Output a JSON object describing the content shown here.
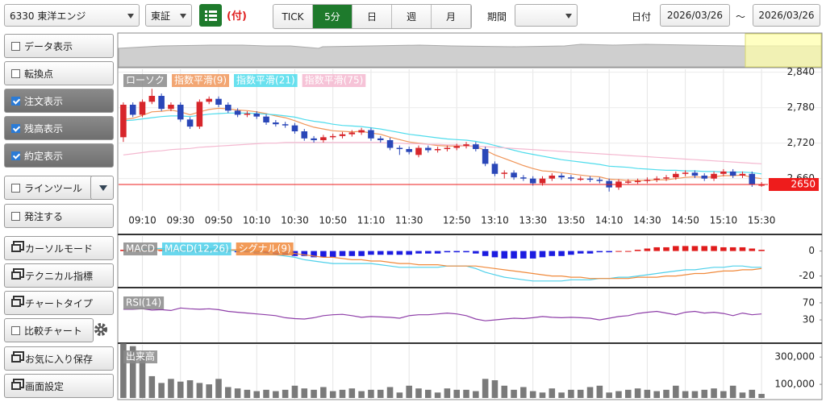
{
  "toolbar": {
    "symbol": "6330 東洋エンジ",
    "market": "東証",
    "flag": "(付)",
    "tabs": [
      "TICK",
      "5分",
      "日",
      "週",
      "月"
    ],
    "active_tab": 1,
    "period_label": "期間",
    "date_label": "日付",
    "date_from": "2026/03/26",
    "tilde": "～",
    "date_to": "2026/03/26"
  },
  "sidebar": {
    "items": [
      {
        "label": "データ表示",
        "checked": false
      },
      {
        "label": "転換点",
        "checked": false
      },
      {
        "label": "注文表示",
        "checked": true
      },
      {
        "label": "残高表示",
        "checked": true
      },
      {
        "label": "約定表示",
        "checked": true
      },
      {
        "label": "ラインツール",
        "checked": false
      },
      {
        "label": "発注する",
        "checked": false
      },
      {
        "label": "カーソルモード"
      },
      {
        "label": "テクニカル指標"
      },
      {
        "label": "チャートタイプ"
      },
      {
        "label": "比較チャート",
        "checked": false
      },
      {
        "label": "お気に入り保存"
      },
      {
        "label": "画面設定"
      }
    ]
  },
  "chart_data": [
    {
      "type": "candlestick",
      "name": "ローソク",
      "up_color": "#d7262b",
      "down_color": "#2a47b8",
      "grid": true,
      "categories": [
        null,
        null,
        "09:10",
        null,
        null,
        null,
        "09:30",
        null,
        null,
        null,
        "09:50",
        null,
        null,
        null,
        "10:10",
        null,
        null,
        null,
        "10:30",
        null,
        null,
        null,
        "10:50",
        null,
        null,
        null,
        "11:10",
        null,
        null,
        null,
        "11:30",
        null,
        null,
        null,
        null,
        "12:50",
        null,
        null,
        null,
        "13:10",
        null,
        null,
        null,
        "13:30",
        null,
        null,
        null,
        "13:50",
        null,
        null,
        null,
        "14:10",
        null,
        null,
        null,
        "14:30",
        null,
        null,
        null,
        "14:50",
        null,
        null,
        null,
        "15:10",
        null,
        null,
        null,
        "15:30"
      ],
      "open": [
        2730,
        2785,
        2768,
        2790,
        2800,
        2778,
        2785,
        2760,
        2748,
        2790,
        2795,
        2785,
        2775,
        2768,
        2770,
        2765,
        2755,
        2752,
        2750,
        2740,
        2728,
        2725,
        2730,
        2732,
        2735,
        2738,
        2742,
        2728,
        2725,
        2712,
        2710,
        2700,
        2712,
        2708,
        2710,
        2712,
        2715,
        2718,
        2710,
        2685,
        2668,
        2670,
        2662,
        2660,
        2652,
        2660,
        2665,
        2662,
        2660,
        2660,
        2658,
        2656,
        2645,
        2655,
        2655,
        2656,
        2658,
        2660,
        2662,
        2668,
        2670,
        2665,
        2660,
        2668,
        2672,
        2665,
        2668,
        2650
      ],
      "high": [
        2789,
        2789,
        2794,
        2812,
        2804,
        2789,
        2789,
        2764,
        2794,
        2799,
        2799,
        2789,
        2779,
        2774,
        2774,
        2769,
        2759,
        2756,
        2754,
        2744,
        2732,
        2734,
        2736,
        2739,
        2742,
        2746,
        2746,
        2732,
        2729,
        2716,
        2714,
        2716,
        2716,
        2714,
        2716,
        2719,
        2722,
        2722,
        2714,
        2689,
        2674,
        2674,
        2666,
        2664,
        2664,
        2669,
        2669,
        2666,
        2664,
        2664,
        2662,
        2660,
        2659,
        2659,
        2660,
        2662,
        2664,
        2666,
        2672,
        2674,
        2674,
        2669,
        2672,
        2676,
        2676,
        2672,
        2672,
        2654
      ],
      "low": [
        2722,
        2764,
        2764,
        2786,
        2774,
        2774,
        2756,
        2744,
        2744,
        2786,
        2781,
        2771,
        2764,
        2764,
        2761,
        2751,
        2748,
        2746,
        2736,
        2724,
        2721,
        2721,
        2726,
        2728,
        2731,
        2734,
        2724,
        2721,
        2708,
        2700,
        2701,
        2696,
        2704,
        2704,
        2706,
        2708,
        2711,
        2706,
        2681,
        2664,
        2660,
        2658,
        2656,
        2648,
        2648,
        2656,
        2658,
        2656,
        2656,
        2654,
        2652,
        2638,
        2641,
        2651,
        2651,
        2652,
        2654,
        2656,
        2658,
        2664,
        2661,
        2656,
        2656,
        2664,
        2661,
        2661,
        2646,
        2646
      ],
      "close": [
        2785,
        2768,
        2790,
        2800,
        2778,
        2785,
        2760,
        2748,
        2790,
        2795,
        2785,
        2775,
        2768,
        2770,
        2765,
        2755,
        2752,
        2750,
        2740,
        2728,
        2725,
        2730,
        2732,
        2735,
        2738,
        2742,
        2728,
        2725,
        2712,
        2710,
        2705,
        2712,
        2708,
        2710,
        2712,
        2715,
        2718,
        2710,
        2685,
        2668,
        2670,
        2662,
        2660,
        2652,
        2660,
        2665,
        2662,
        2660,
        2660,
        2658,
        2656,
        2645,
        2655,
        2655,
        2656,
        2658,
        2660,
        2662,
        2668,
        2670,
        2665,
        2660,
        2668,
        2672,
        2665,
        2668,
        2650,
        2650
      ],
      "series": [
        {
          "name": "指数平滑(9)",
          "color": "#f0965a",
          "values": [
            2760,
            2762,
            2767,
            2773,
            2774,
            2776,
            2773,
            2768,
            2773,
            2777,
            2779,
            2778,
            2776,
            2775,
            2773,
            2770,
            2766,
            2763,
            2758,
            2752,
            2747,
            2744,
            2741,
            2740,
            2739,
            2740,
            2737,
            2735,
            2730,
            2726,
            2722,
            2720,
            2718,
            2716,
            2715,
            2715,
            2716,
            2714,
            2708,
            2700,
            2694,
            2688,
            2682,
            2677,
            2673,
            2672,
            2670,
            2668,
            2666,
            2664,
            2663,
            2659,
            2658,
            2657,
            2657,
            2657,
            2658,
            2658,
            2660,
            2662,
            2663,
            2662,
            2663,
            2665,
            2665,
            2666,
            2662,
            2660
          ]
        },
        {
          "name": "指数平滑(21)",
          "color": "#4fdcec",
          "values": [
            2758,
            2759,
            2761,
            2763,
            2765,
            2766,
            2766,
            2765,
            2767,
            2769,
            2770,
            2771,
            2771,
            2771,
            2770,
            2769,
            2768,
            2766,
            2764,
            2760,
            2757,
            2755,
            2752,
            2750,
            2749,
            2748,
            2746,
            2744,
            2741,
            2738,
            2735,
            2733,
            2731,
            2729,
            2727,
            2726,
            2725,
            2723,
            2720,
            2716,
            2712,
            2708,
            2704,
            2701,
            2698,
            2695,
            2692,
            2690,
            2688,
            2686,
            2684,
            2681,
            2680,
            2679,
            2677,
            2676,
            2675,
            2674,
            2674,
            2673,
            2673,
            2672,
            2672,
            2671,
            2671,
            2671,
            2670,
            2668
          ]
        },
        {
          "name": "指数平滑(75)",
          "color": "#f4b8d0",
          "values": [
            2700,
            2702,
            2704,
            2706,
            2707,
            2709,
            2710,
            2711,
            2713,
            2714,
            2715,
            2716,
            2717,
            2718,
            2719,
            2720,
            2720,
            2721,
            2721,
            2721,
            2721,
            2721,
            2721,
            2721,
            2721,
            2721,
            2721,
            2721,
            2720,
            2720,
            2719,
            2719,
            2718,
            2718,
            2717,
            2717,
            2716,
            2715,
            2714,
            2713,
            2712,
            2711,
            2710,
            2709,
            2708,
            2707,
            2706,
            2705,
            2704,
            2703,
            2702,
            2701,
            2700,
            2699,
            2698,
            2697,
            2696,
            2695,
            2694,
            2693,
            2692,
            2691,
            2690,
            2689,
            2688,
            2687,
            2686,
            2685
          ]
        }
      ],
      "ylim": [
        2605,
        2845
      ],
      "yticks": [
        {
          "value": 2840,
          "label": "2,840"
        },
        {
          "value": 2780,
          "label": "2,780"
        },
        {
          "value": 2720,
          "label": "2,720"
        },
        {
          "value": 2660,
          "label": "2,660"
        }
      ],
      "last_price": 2650,
      "last_price_color": "#ee1c1c"
    },
    {
      "type": "macd",
      "grid": false,
      "series": [
        {
          "name": "MACD",
          "type": "bar",
          "color": "#e01c1c",
          "negative_color": "#1c1ce0",
          "values": [
            1,
            1,
            1,
            1,
            1,
            1,
            0,
            0,
            0,
            1,
            1,
            0,
            -1,
            -1,
            -2,
            -2,
            -3,
            -3,
            -4,
            -4,
            -5,
            -5,
            -5,
            -4,
            -4,
            -4,
            -3,
            -3,
            -3,
            -3,
            -3,
            -2,
            -2,
            -2,
            -1,
            -1,
            -1,
            -2,
            -4,
            -5,
            -6,
            -6,
            -6,
            -6,
            -5,
            -4,
            -4,
            -3,
            -2,
            -2,
            -1,
            -1,
            0,
            0,
            1,
            2,
            3,
            3,
            4,
            4,
            4,
            4,
            4,
            3,
            3,
            3,
            2,
            1
          ]
        },
        {
          "name": "MACD(12,26)",
          "type": "line",
          "color": "#4fd0ea",
          "values": [
            0,
            0,
            1,
            2,
            2,
            2,
            1,
            0,
            1,
            2,
            2,
            1,
            0,
            0,
            -1,
            -2,
            -3,
            -4,
            -5,
            -7,
            -8,
            -9,
            -10,
            -10,
            -10,
            -10,
            -10,
            -11,
            -12,
            -13,
            -13,
            -13,
            -13,
            -13,
            -12,
            -12,
            -12,
            -14,
            -17,
            -19,
            -21,
            -22,
            -23,
            -24,
            -24,
            -24,
            -24,
            -23,
            -23,
            -23,
            -22,
            -22,
            -21,
            -21,
            -20,
            -19,
            -18,
            -17,
            -16,
            -15,
            -15,
            -14,
            -13,
            -13,
            -12,
            -12,
            -13,
            -13
          ]
        },
        {
          "name": "シグナル(9)",
          "type": "line",
          "color": "#f08a3c",
          "values": [
            0,
            0,
            0,
            1,
            1,
            1,
            1,
            1,
            1,
            1,
            1,
            1,
            1,
            1,
            0,
            0,
            -1,
            -1,
            -2,
            -3,
            -4,
            -5,
            -5,
            -6,
            -7,
            -7,
            -8,
            -8,
            -9,
            -10,
            -10,
            -11,
            -11,
            -11,
            -12,
            -12,
            -12,
            -12,
            -13,
            -14,
            -15,
            -16,
            -17,
            -18,
            -19,
            -20,
            -20,
            -21,
            -21,
            -22,
            -22,
            -22,
            -22,
            -22,
            -21,
            -21,
            -21,
            -20,
            -20,
            -19,
            -18,
            -18,
            -17,
            -16,
            -16,
            -15,
            -15,
            -14
          ]
        }
      ],
      "ylim": [
        -28,
        12
      ],
      "yticks": [
        0,
        -20
      ]
    },
    {
      "type": "line",
      "grid": false,
      "series": [
        {
          "name": "RSI(14)",
          "color": "#8e3ea8",
          "values": [
            55,
            55,
            56,
            53,
            54,
            52,
            58,
            56,
            55,
            56,
            54,
            50,
            48,
            46,
            44,
            42,
            40,
            35,
            33,
            32,
            35,
            40,
            42,
            43,
            40,
            36,
            38,
            37,
            36,
            34,
            40,
            42,
            42,
            44,
            46,
            44,
            40,
            32,
            28,
            30,
            32,
            34,
            33,
            35,
            38,
            36,
            35,
            36,
            35,
            34,
            30,
            34,
            38,
            40,
            45,
            48,
            50,
            46,
            42,
            48,
            50,
            46,
            48,
            45,
            40,
            46,
            42,
            44
          ]
        }
      ],
      "ylim": [
        0,
        100
      ],
      "yticks": [
        70,
        30
      ]
    },
    {
      "type": "bar",
      "grid": false,
      "series": [
        {
          "name": "出来高",
          "color": "#7a7a7a",
          "values": [
            400000,
            380000,
            310000,
            160000,
            110000,
            140000,
            120000,
            130000,
            110000,
            100000,
            140000,
            80000,
            70000,
            60000,
            50000,
            60000,
            50000,
            60000,
            90000,
            70000,
            60000,
            80000,
            50000,
            60000,
            70000,
            50000,
            60000,
            60000,
            80000,
            40000,
            90000,
            70000,
            60000,
            40000,
            70000,
            60000,
            60000,
            50000,
            140000,
            130000,
            90000,
            60000,
            80000,
            50000,
            40000,
            70000,
            40000,
            60000,
            60000,
            80000,
            90000,
            40000,
            50000,
            60000,
            70000,
            60000,
            50000,
            60000,
            90000,
            50000,
            50000,
            60000,
            70000,
            50000,
            90000,
            40000,
            60000,
            30000
          ]
        }
      ],
      "ylim": [
        0,
        390000
      ],
      "yticks": [
        {
          "value": 300000,
          "label": "300,000"
        },
        {
          "value": 100000,
          "label": "100,000"
        }
      ]
    }
  ]
}
